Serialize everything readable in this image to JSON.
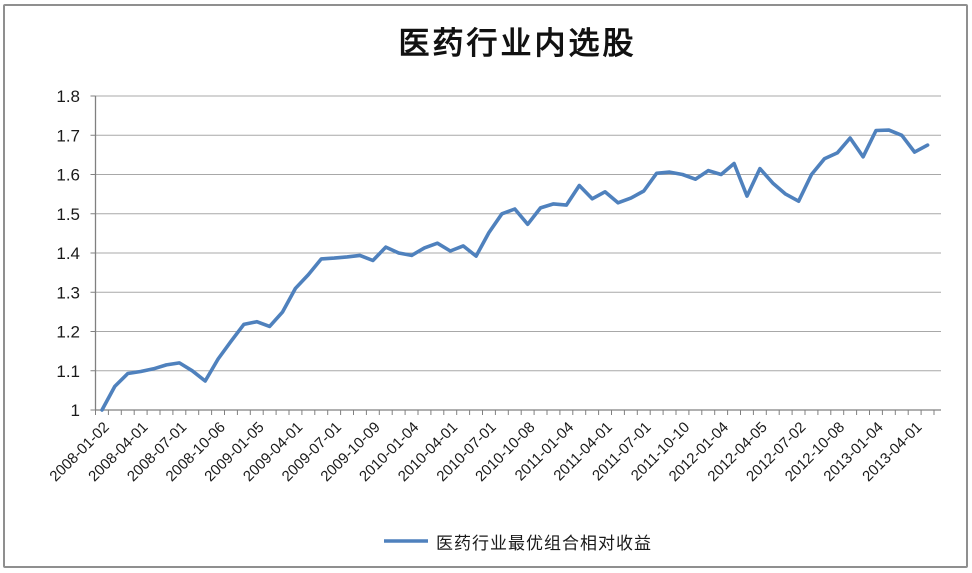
{
  "chart": {
    "title": "医药行业内选股",
    "legend_label": "医药行业最优组合相对收益",
    "line_color": "#4F81BD",
    "gridline_color": "#A8A8A8",
    "axis_color": "#808080",
    "text_color": "#1A1A1A",
    "border_color": "#8F8F8F",
    "background": "#FFFFFF"
  },
  "chart_data": {
    "type": "line",
    "title": "医药行业内选股",
    "xlabel": "",
    "ylabel": "",
    "ylim": [
      1.0,
      1.8
    ],
    "yticks": [
      1.0,
      1.1,
      1.2,
      1.3,
      1.4,
      1.5,
      1.6,
      1.7,
      1.8
    ],
    "ytick_labels": [
      "1",
      "1.1",
      "1.2",
      "1.3",
      "1.4",
      "1.5",
      "1.6",
      "1.7",
      "1.8"
    ],
    "grid": true,
    "legend_position": "bottom",
    "x_tick_label_every_n_months": 3,
    "x_tick_labels": [
      "2008-01-02",
      "2008-04-01",
      "2008-07-01",
      "2008-10-06",
      "2009-01-05",
      "2009-04-01",
      "2009-07-01",
      "2009-10-09",
      "2010-01-04",
      "2010-04-01",
      "2010-07-01",
      "2010-10-08",
      "2011-01-04",
      "2011-04-01",
      "2011-07-01",
      "2011-10-10",
      "2012-01-04",
      "2012-04-05",
      "2012-07-02",
      "2012-10-08",
      "2013-01-04",
      "2013-04-01"
    ],
    "x": [
      "2008-01",
      "2008-02",
      "2008-03",
      "2008-04",
      "2008-05",
      "2008-06",
      "2008-07",
      "2008-08",
      "2008-09",
      "2008-10",
      "2008-11",
      "2008-12",
      "2009-01",
      "2009-02",
      "2009-03",
      "2009-04",
      "2009-05",
      "2009-06",
      "2009-07",
      "2009-08",
      "2009-09",
      "2009-10",
      "2009-11",
      "2009-12",
      "2010-01",
      "2010-02",
      "2010-03",
      "2010-04",
      "2010-05",
      "2010-06",
      "2010-07",
      "2010-08",
      "2010-09",
      "2010-10",
      "2010-11",
      "2010-12",
      "2011-01",
      "2011-02",
      "2011-03",
      "2011-04",
      "2011-05",
      "2011-06",
      "2011-07",
      "2011-08",
      "2011-09",
      "2011-10",
      "2011-11",
      "2011-12",
      "2012-01",
      "2012-02",
      "2012-03",
      "2012-04",
      "2012-05",
      "2012-06",
      "2012-07",
      "2012-08",
      "2012-09",
      "2012-10",
      "2012-11",
      "2012-12",
      "2013-01",
      "2013-02",
      "2013-03",
      "2013-04",
      "2013-05"
    ],
    "series": [
      {
        "name": "医药行业最优组合相对收益",
        "color": "#4F81BD",
        "values": [
          1.0,
          1.06,
          1.093,
          1.098,
          1.105,
          1.115,
          1.12,
          1.1,
          1.074,
          1.13,
          1.175,
          1.218,
          1.225,
          1.213,
          1.25,
          1.31,
          1.345,
          1.385,
          1.387,
          1.39,
          1.394,
          1.381,
          1.415,
          1.4,
          1.394,
          1.413,
          1.425,
          1.405,
          1.418,
          1.392,
          1.452,
          1.5,
          1.512,
          1.473,
          1.515,
          1.525,
          1.522,
          1.572,
          1.538,
          1.556,
          1.528,
          1.54,
          1.558,
          1.603,
          1.606,
          1.6,
          1.588,
          1.61,
          1.6,
          1.628,
          1.545,
          1.615,
          1.578,
          1.55,
          1.532,
          1.6,
          1.64,
          1.655,
          1.693,
          1.645,
          1.712,
          1.713,
          1.7,
          1.657,
          1.675
        ]
      }
    ]
  }
}
